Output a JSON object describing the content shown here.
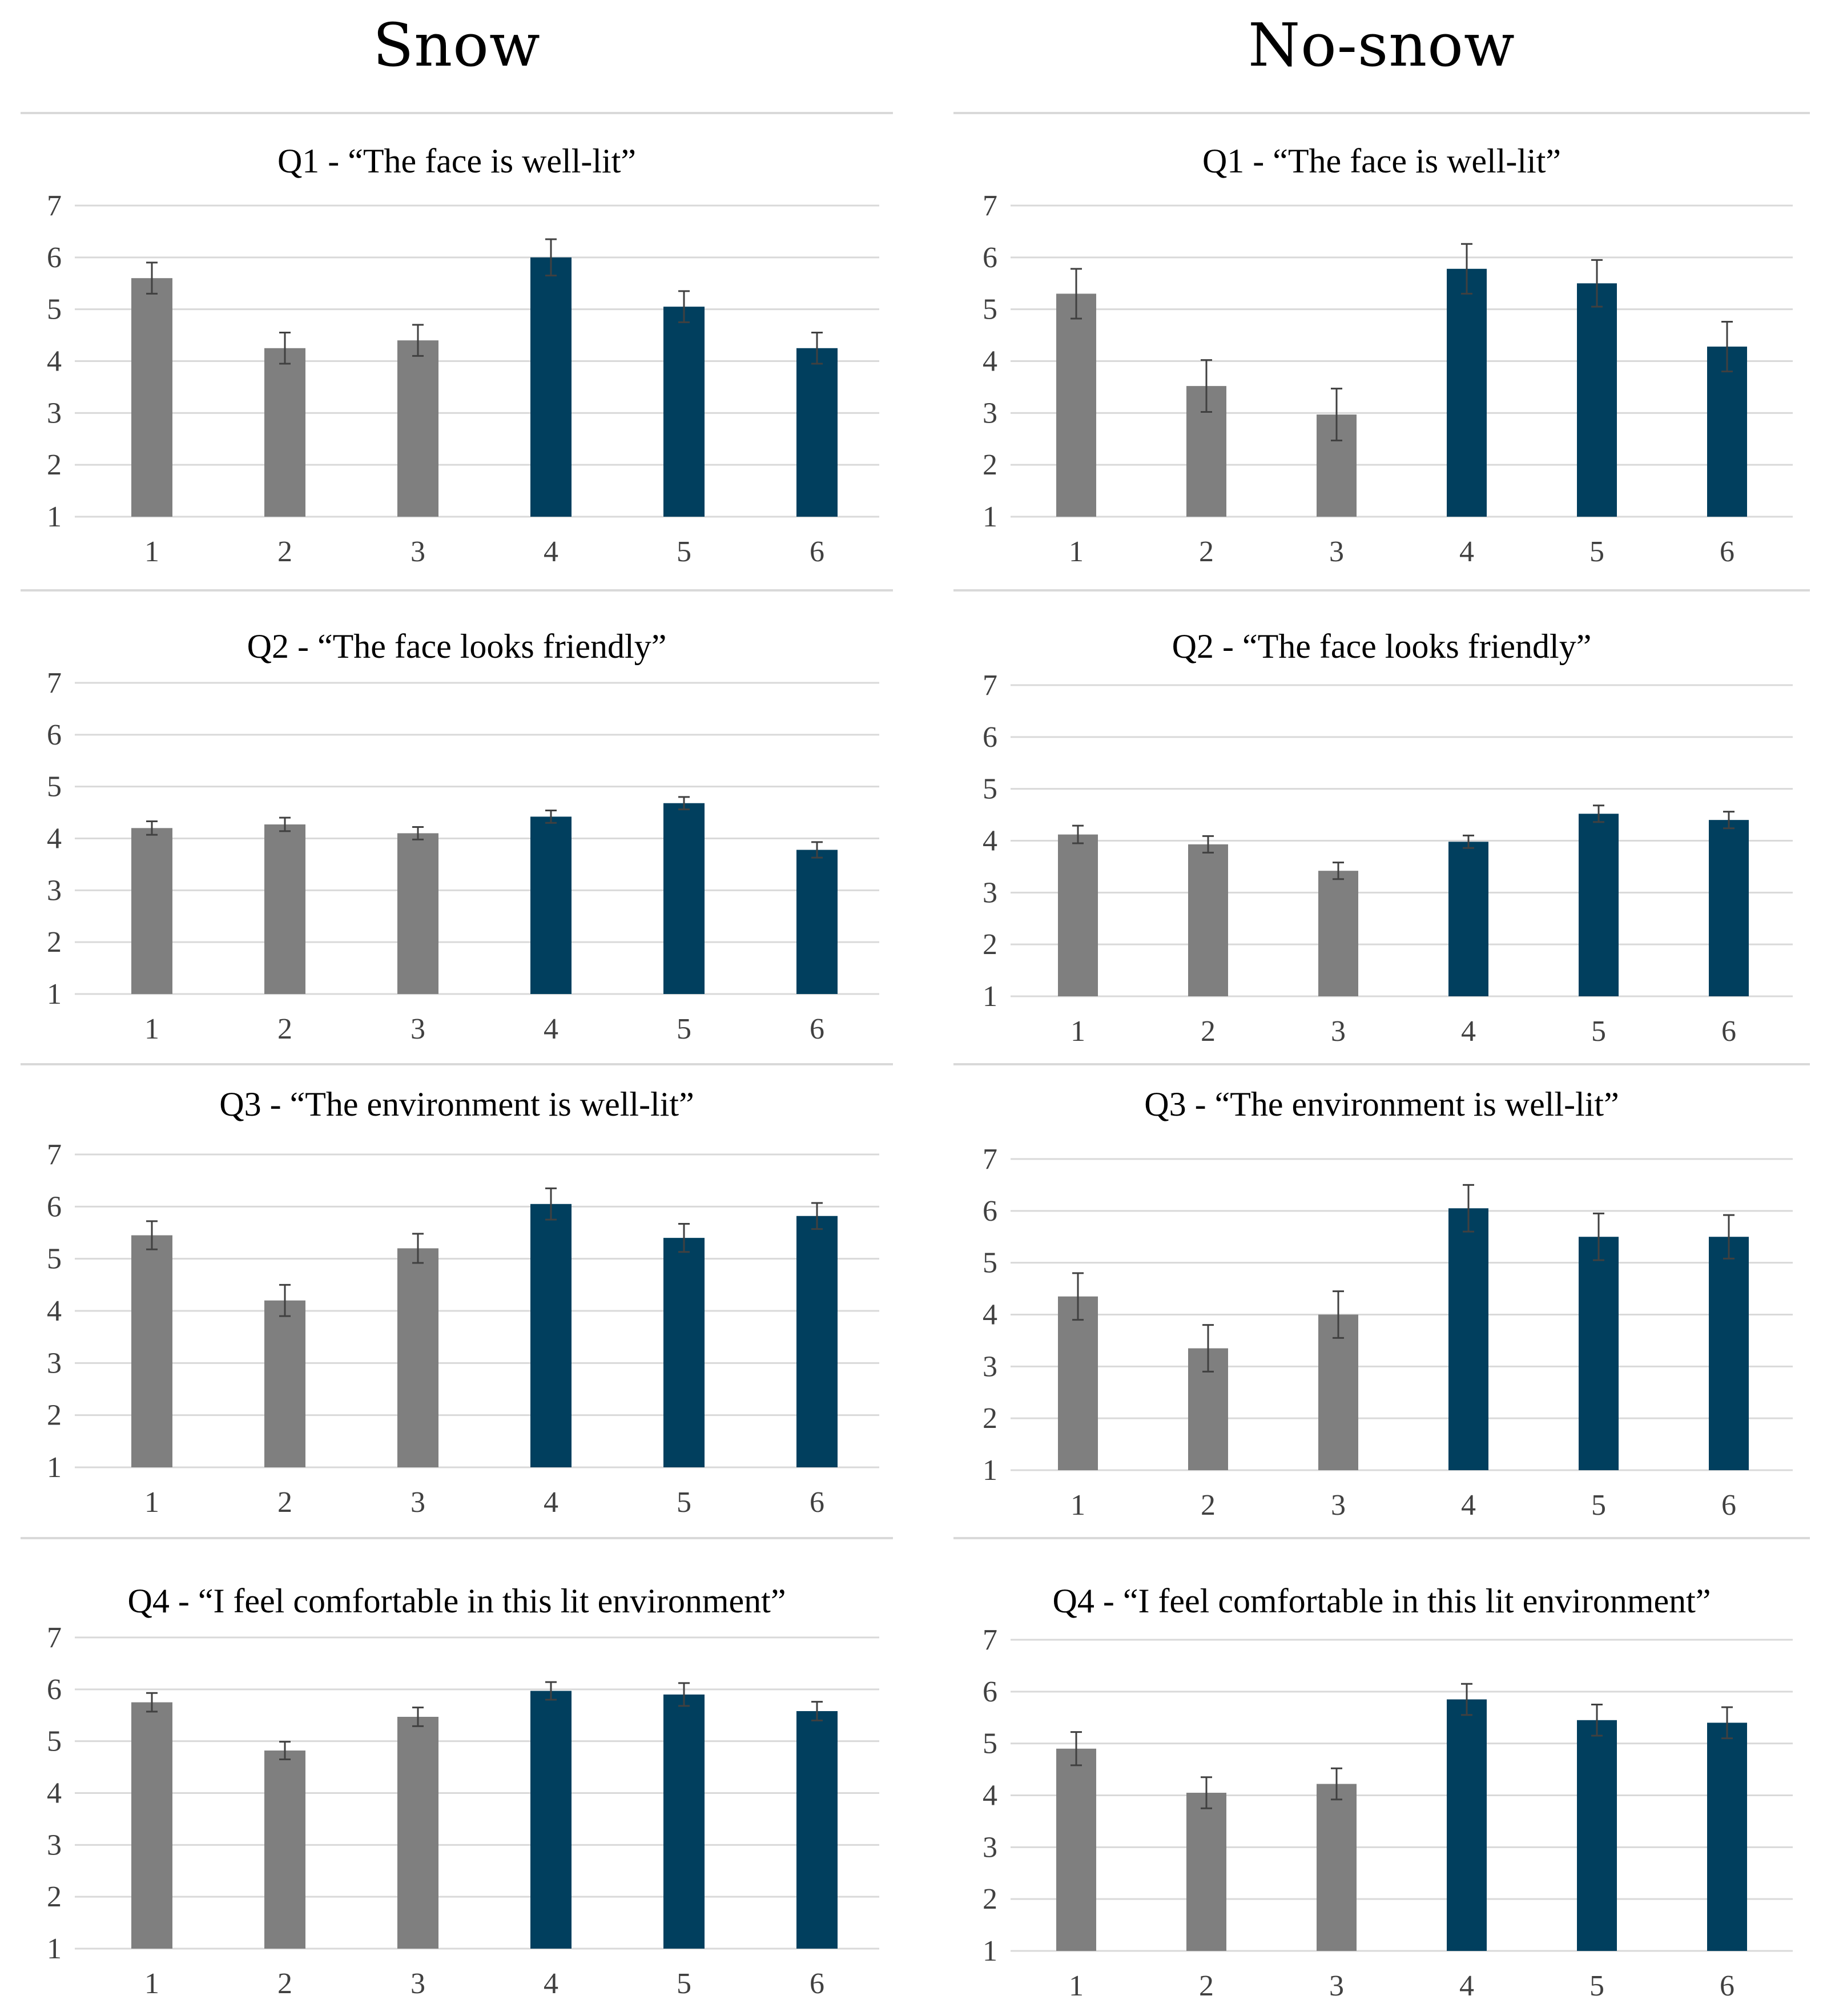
{
  "headings": {
    "snow": "Snow",
    "nosnow": "No-snow"
  },
  "colors": {
    "group_a": "#7f7f7f",
    "group_b": "#013f5e",
    "grid": "#d9d9d9",
    "errorbar": "#404040"
  },
  "chart_data": [
    {
      "id": "snow-q1",
      "type": "bar",
      "title": "Q1 - “The face is well-lit”",
      "categories": [
        "1",
        "2",
        "3",
        "4",
        "5",
        "6"
      ],
      "values": [
        5.6,
        4.25,
        4.4,
        6.0,
        5.05,
        4.25
      ],
      "errors": [
        0.3,
        0.3,
        0.3,
        0.35,
        0.3,
        0.3
      ],
      "ylim": [
        1,
        7
      ],
      "yticks": [
        "1",
        "2",
        "3",
        "4",
        "5",
        "6",
        "7"
      ]
    },
    {
      "id": "snow-q2",
      "type": "bar",
      "title": "Q2 - “The face looks friendly”",
      "categories": [
        "1",
        "2",
        "3",
        "4",
        "5",
        "6"
      ],
      "values": [
        4.2,
        4.27,
        4.1,
        4.42,
        4.68,
        3.78
      ],
      "errors": [
        0.13,
        0.13,
        0.12,
        0.12,
        0.12,
        0.15
      ],
      "ylim": [
        1,
        7
      ],
      "yticks": [
        "1",
        "2",
        "3",
        "4",
        "5",
        "6",
        "7"
      ]
    },
    {
      "id": "snow-q3",
      "type": "bar",
      "title": "Q3 - “The environment is well-lit”",
      "categories": [
        "1",
        "2",
        "3",
        "4",
        "5",
        "6"
      ],
      "values": [
        5.45,
        4.2,
        5.2,
        6.05,
        5.4,
        5.82
      ],
      "errors": [
        0.27,
        0.3,
        0.28,
        0.3,
        0.27,
        0.25
      ],
      "ylim": [
        1,
        7
      ],
      "yticks": [
        "1",
        "2",
        "3",
        "4",
        "5",
        "6",
        "7"
      ]
    },
    {
      "id": "snow-q4",
      "type": "bar",
      "title": "Q4 - “I feel comfortable in this lit environment”",
      "categories": [
        "1",
        "2",
        "3",
        "4",
        "5",
        "6"
      ],
      "values": [
        5.75,
        4.82,
        5.47,
        5.97,
        5.9,
        5.58
      ],
      "errors": [
        0.18,
        0.17,
        0.18,
        0.17,
        0.22,
        0.18
      ],
      "ylim": [
        1,
        7
      ],
      "yticks": [
        "1",
        "2",
        "3",
        "4",
        "5",
        "6",
        "7"
      ]
    },
    {
      "id": "nosnow-q1",
      "type": "bar",
      "title": "Q1 - “The face is well-lit”",
      "categories": [
        "1",
        "2",
        "3",
        "4",
        "5",
        "6"
      ],
      "values": [
        5.3,
        3.52,
        2.97,
        5.78,
        5.5,
        4.28
      ],
      "errors": [
        0.48,
        0.5,
        0.5,
        0.48,
        0.45,
        0.48
      ],
      "ylim": [
        1,
        7
      ],
      "yticks": [
        "1",
        "2",
        "3",
        "4",
        "5",
        "6",
        "7"
      ]
    },
    {
      "id": "nosnow-q2",
      "type": "bar",
      "title": "Q2 - “The face looks friendly”",
      "categories": [
        "1",
        "2",
        "3",
        "4",
        "5",
        "6"
      ],
      "values": [
        4.12,
        3.93,
        3.42,
        3.98,
        4.52,
        4.4
      ],
      "errors": [
        0.17,
        0.16,
        0.16,
        0.12,
        0.16,
        0.16
      ],
      "ylim": [
        1,
        7
      ],
      "yticks": [
        "1",
        "2",
        "3",
        "4",
        "5",
        "6",
        "7"
      ]
    },
    {
      "id": "nosnow-q3",
      "type": "bar",
      "title": "Q3 - “The environment is well-lit”",
      "categories": [
        "1",
        "2",
        "3",
        "4",
        "5",
        "6"
      ],
      "values": [
        4.35,
        3.35,
        4.0,
        6.05,
        5.5,
        5.5
      ],
      "errors": [
        0.45,
        0.45,
        0.45,
        0.45,
        0.45,
        0.42
      ],
      "ylim": [
        1,
        7
      ],
      "yticks": [
        "1",
        "2",
        "3",
        "4",
        "5",
        "6",
        "7"
      ]
    },
    {
      "id": "nosnow-q4",
      "type": "bar",
      "title": "Q4 - “I feel comfortable in this lit environment”",
      "categories": [
        "1",
        "2",
        "3",
        "4",
        "5",
        "6"
      ],
      "values": [
        4.9,
        4.05,
        4.22,
        5.85,
        5.45,
        5.4
      ],
      "errors": [
        0.32,
        0.3,
        0.3,
        0.3,
        0.3,
        0.3
      ],
      "ylim": [
        1,
        7
      ],
      "yticks": [
        "1",
        "2",
        "3",
        "4",
        "5",
        "6",
        "7"
      ]
    }
  ]
}
